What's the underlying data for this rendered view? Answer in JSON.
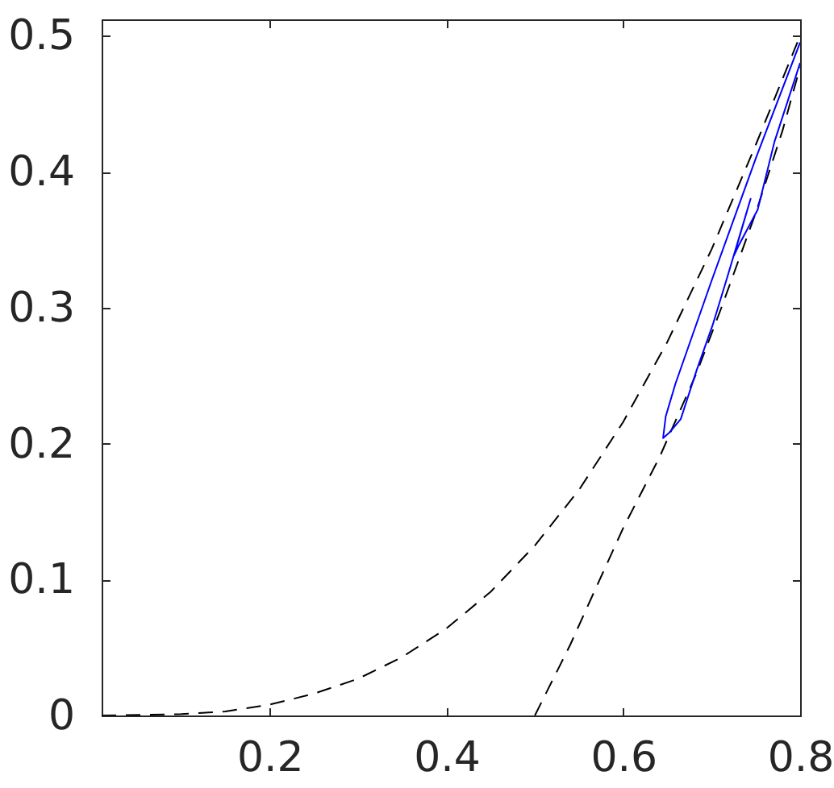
{
  "chart_data": {
    "type": "line",
    "xlim": [
      0.01,
      0.8
    ],
    "ylim": [
      0,
      0.512
    ],
    "xticks": [
      0.2,
      0.4,
      0.6,
      0.8
    ],
    "yticks": [
      0,
      0.1,
      0.2,
      0.3,
      0.4,
      0.5
    ],
    "series": [
      {
        "color": "#000000",
        "line_style": "dashed",
        "x": [
          0.01,
          0.1,
          0.15,
          0.2,
          0.25,
          0.3,
          0.35,
          0.4,
          0.45,
          0.5,
          0.55,
          0.6,
          0.65,
          0.7,
          0.75,
          0.8
        ],
        "values": [
          0,
          0.001,
          0.003,
          0.008,
          0.016,
          0.027,
          0.043,
          0.064,
          0.091,
          0.125,
          0.166,
          0.216,
          0.275,
          0.343,
          0.42,
          0.5
        ]
      },
      {
        "color": "#000000",
        "line_style": "dashed",
        "x": [
          0.5,
          0.54,
          0.565,
          0.6,
          0.641,
          0.683,
          0.711,
          0.75,
          0.78,
          0.8
        ],
        "values": [
          0,
          0.052,
          0.088,
          0.138,
          0.19,
          0.252,
          0.3,
          0.37,
          0.43,
          0.477
        ]
      },
      {
        "color": "#0000ff",
        "line_style": "solid",
        "x": [
          0.8,
          0.75,
          0.7,
          0.659,
          0.648,
          0.645,
          0.652,
          0.665,
          0.683,
          0.701,
          0.717,
          0.744,
          0.725,
          0.73,
          0.752,
          0.771,
          0.8
        ],
        "values": [
          0.495,
          0.41,
          0.32,
          0.244,
          0.22,
          0.204,
          0.208,
          0.218,
          0.254,
          0.287,
          0.321,
          0.38,
          0.338,
          0.345,
          0.372,
          0.422,
          0.48
        ]
      }
    ]
  }
}
